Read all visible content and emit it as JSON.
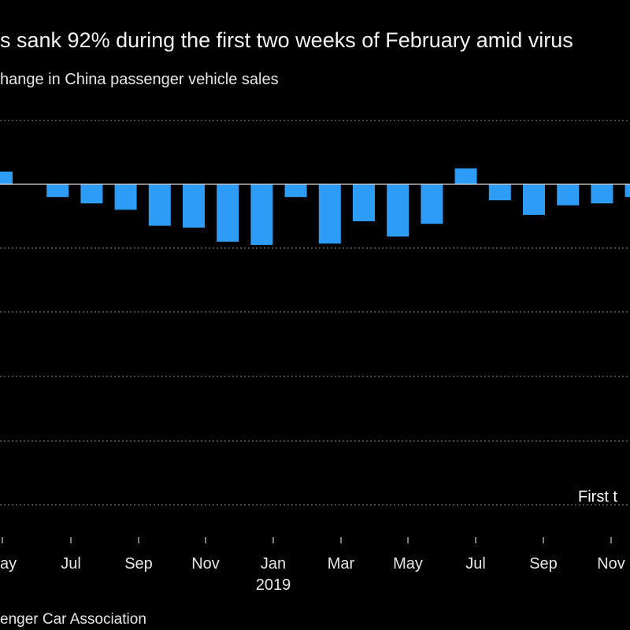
{
  "title": "s sank 92% during the first two weeks of February amid virus",
  "subtitle": "hange in China passenger vehicle sales",
  "source": "enger Car Association",
  "annotation": "First t",
  "chart_data": {
    "type": "bar",
    "title": "s sank 92% during the first two weeks of February amid virus",
    "subtitle": "hange in China passenger vehicle sales",
    "x_tick_labels": [
      "ay",
      "Jul",
      "Sep",
      "Nov",
      "Jan",
      "Mar",
      "May",
      "Jul",
      "Sep",
      "Nov"
    ],
    "x_secondary_label": "2019",
    "annotations": [
      "First t"
    ],
    "grid": "horizontal dotted",
    "bar_color": "#2d9cf7",
    "values": [
      2,
      -2,
      -3,
      -4,
      -6.5,
      -6.8,
      -9,
      -9.5,
      -2,
      -9.3,
      -5.8,
      -8.2,
      -6.2,
      2.5,
      -2.5,
      -4.8,
      -3.3,
      -3,
      -2
    ],
    "ylim": [
      -55,
      10
    ]
  }
}
